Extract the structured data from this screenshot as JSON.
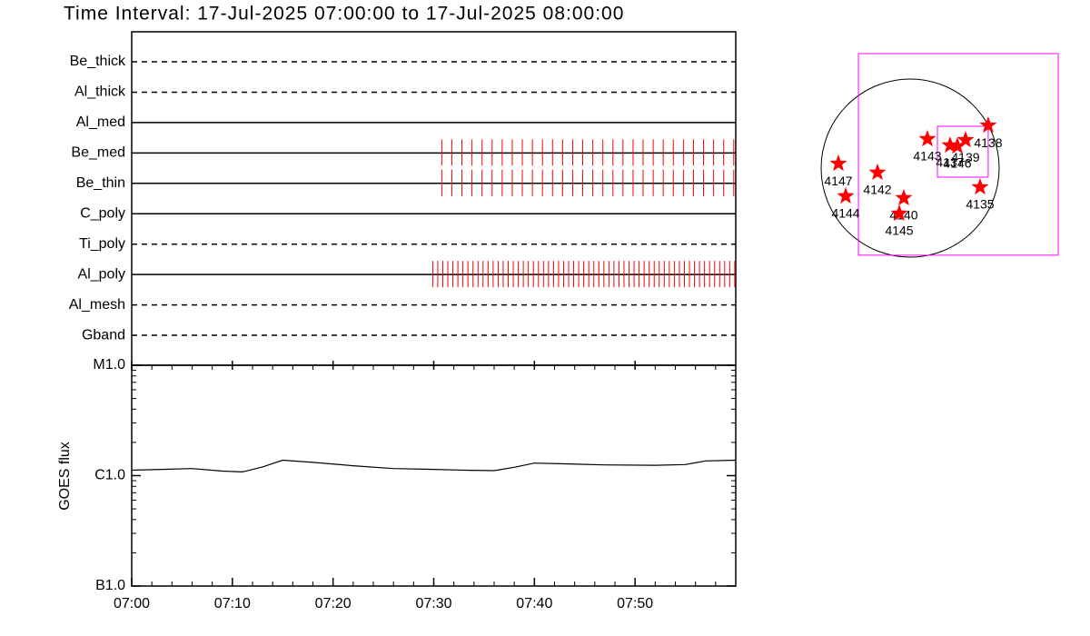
{
  "title": "Time Interval: 17-Jul-2025 07:00:00 to 17-Jul-2025 08:00:00",
  "chart_data": [
    {
      "type": "timeline",
      "categories": [
        "Be_thick",
        "Al_thick",
        "Al_med",
        "Be_med",
        "Be_thin",
        "C_poly",
        "Ti_poly",
        "Al_poly",
        "Al_mesh",
        "Gband"
      ],
      "styles": [
        "dashed",
        "dashed",
        "solid",
        "solid",
        "solid",
        "solid",
        "dashed",
        "solid",
        "dashed",
        "dashed"
      ],
      "color": "#ff0000",
      "xlim": [
        0,
        60
      ],
      "exposures": [
        [],
        [],
        [],
        [
          30.8,
          31.8,
          32.8,
          33.8,
          34.8,
          35.8,
          36.8,
          37.8,
          38.8,
          39.8,
          40.8,
          41.8,
          42.8,
          43.8,
          44.8,
          45.8,
          46.8,
          47.8,
          48.8,
          49.8,
          50.8,
          51.8,
          52.8,
          53.8,
          54.8,
          55.8,
          56.8,
          57.8,
          58.8,
          59.8
        ],
        [
          30.8,
          31.8,
          32.8,
          33.8,
          34.8,
          35.8,
          36.8,
          37.8,
          38.8,
          39.8,
          40.8,
          41.8,
          42.8,
          43.8,
          44.8,
          45.8,
          46.8,
          47.8,
          48.8,
          49.8,
          50.8,
          51.8,
          52.8,
          53.8,
          54.8,
          55.8,
          56.8,
          57.8,
          58.8,
          59.8
        ],
        [],
        [],
        [
          29.9,
          30.4,
          30.9,
          31.4,
          31.9,
          32.4,
          32.9,
          33.4,
          33.9,
          34.4,
          34.9,
          35.4,
          35.9,
          36.4,
          36.9,
          37.4,
          37.9,
          38.4,
          38.9,
          39.4,
          39.9,
          40.4,
          40.9,
          41.4,
          41.9,
          42.4,
          42.9,
          43.4,
          43.9,
          44.4,
          44.9,
          45.4,
          45.9,
          46.4,
          46.9,
          47.4,
          47.9,
          48.4,
          48.9,
          49.4,
          49.9,
          50.4,
          50.9,
          51.4,
          51.9,
          52.4,
          52.9,
          53.4,
          53.9,
          54.4,
          54.9,
          55.4,
          55.9,
          56.4,
          56.9,
          57.4,
          57.9,
          58.4,
          58.9,
          59.4,
          59.9
        ],
        [],
        []
      ]
    },
    {
      "type": "line",
      "y_label": "GOES flux",
      "color": "#000000",
      "log_scale": true,
      "xlim": [
        0,
        60
      ],
      "xticks": [
        {
          "value": 0,
          "label": "07:00"
        },
        {
          "value": 10,
          "label": "07:10"
        },
        {
          "value": 20,
          "label": "07:20"
        },
        {
          "value": 30,
          "label": "07:30"
        },
        {
          "value": 40,
          "label": "07:40"
        },
        {
          "value": 50,
          "label": "07:50"
        }
      ],
      "xminorticks": [
        2,
        4,
        6,
        8,
        12,
        14,
        16,
        18,
        22,
        24,
        26,
        28,
        32,
        34,
        36,
        38,
        42,
        44,
        46,
        48,
        52,
        54,
        56,
        58
      ],
      "ylim": [
        1e-07,
        1e-05
      ],
      "yticks": [
        {
          "value": 1e-05,
          "label": "M1.0"
        },
        {
          "value": 1e-06,
          "label": "C1.0"
        },
        {
          "value": 1e-07,
          "label": "B1.0"
        }
      ],
      "yminorticks": [
        2e-07,
        3e-07,
        4e-07,
        5e-07,
        6e-07,
        7e-07,
        8e-07,
        9e-07,
        2e-06,
        3e-06,
        4e-06,
        5e-06,
        6e-06,
        7e-06,
        8e-06,
        9e-06
      ],
      "x": [
        0,
        3,
        6,
        9,
        11,
        13,
        15,
        18,
        22,
        26,
        30,
        33,
        36,
        38,
        40,
        43,
        47,
        52,
        55,
        57,
        60
      ],
      "values": [
        1.12e-06,
        1.14e-06,
        1.16e-06,
        1.1e-06,
        1.08e-06,
        1.2e-06,
        1.38e-06,
        1.32e-06,
        1.23e-06,
        1.16e-06,
        1.14e-06,
        1.12e-06,
        1.11e-06,
        1.19e-06,
        1.3e-06,
        1.28e-06,
        1.25e-06,
        1.24e-06,
        1.26e-06,
        1.36e-06,
        1.38e-06
      ]
    },
    {
      "type": "scatter",
      "radius": 950,
      "disk_color": "#000000",
      "box_color": "#ff00ff",
      "color": "#ff0000",
      "boxes": [
        {
          "xlim": [
            -552,
            1580
          ],
          "ylim": [
            -930,
            1221
          ]
        },
        {
          "xlim": [
            291,
            833
          ],
          "ylim": [
            -97,
            446
          ]
        }
      ],
      "labels": [
        "4147",
        "4144",
        "4142",
        "4140",
        "4145",
        "4143",
        "4137",
        "4146",
        "4139",
        "4138",
        "4135"
      ],
      "x": [
        -766,
        -688,
        -349,
        -68,
        -116,
        184,
        426,
        504,
        591,
        833,
        746
      ],
      "y": [
        48,
        -300,
        -48,
        -320,
        -485,
        310,
        242,
        233,
        300,
        455,
        -204
      ]
    }
  ]
}
